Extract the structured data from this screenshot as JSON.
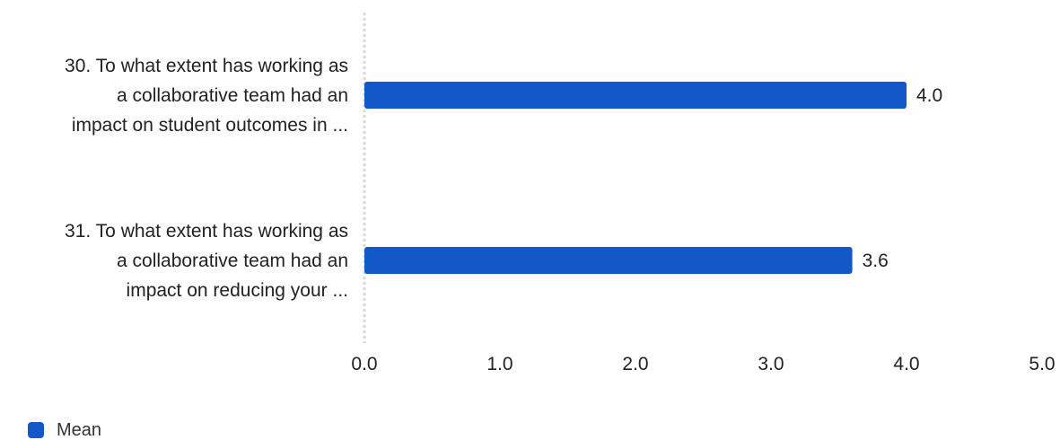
{
  "chart_data": {
    "type": "bar",
    "orientation": "horizontal",
    "categories": [
      [
        "30. To what extent has working as",
        "a collaborative team had an",
        "impact on student outcomes in ..."
      ],
      [
        "31. To what extent has working as",
        "a collaborative team had an",
        "impact on reducing your ..."
      ]
    ],
    "series": [
      {
        "name": "Mean",
        "values": [
          4.0,
          3.6
        ],
        "value_labels": [
          "4.0",
          "3.6"
        ]
      }
    ],
    "x_ticks": [
      "0.0",
      "1.0",
      "2.0",
      "3.0",
      "4.0",
      "5.0"
    ],
    "xlim": [
      0,
      5
    ],
    "xlabel": "",
    "ylabel": "",
    "grid": false,
    "legend_position": "bottom-left",
    "colors": {
      "bar": "#1358c9",
      "axis_line": "#d9d9d9"
    }
  },
  "legend": {
    "label": "Mean",
    "color": "#1358c9"
  }
}
